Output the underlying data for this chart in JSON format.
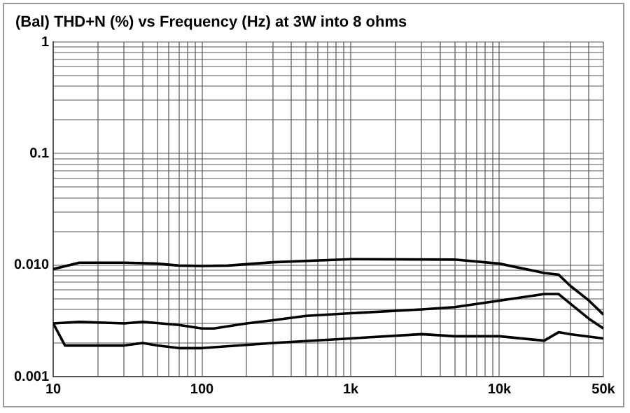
{
  "chart_data": {
    "type": "line",
    "title": "(Bal)  THD+N (%) vs Frequency (Hz) at 3W into 8 ohms",
    "log": "xy",
    "grid": true,
    "marker": "none",
    "line_style": "solid",
    "legend": false,
    "xlim": [
      10,
      50000
    ],
    "ylim": [
      0.001,
      1
    ],
    "xticks": [
      10,
      {
        "value": 20,
        "label": null
      },
      {
        "value": 30,
        "label": null
      },
      {
        "value": 40,
        "label": null
      },
      {
        "value": 50,
        "label": null
      },
      {
        "value": 60,
        "label": null
      },
      {
        "value": 70,
        "label": null
      },
      {
        "value": 80,
        "label": null
      },
      {
        "value": 90,
        "label": null
      },
      100,
      {
        "value": 200,
        "label": null
      },
      {
        "value": 300,
        "label": null
      },
      {
        "value": 400,
        "label": null
      },
      {
        "value": 500,
        "label": null
      },
      {
        "value": 600,
        "label": null
      },
      {
        "value": 700,
        "label": null
      },
      {
        "value": 800,
        "label": null
      },
      {
        "value": 900,
        "label": null
      },
      {
        "value": 1000,
        "label": "1k"
      },
      {
        "value": 2000,
        "label": null
      },
      {
        "value": 3000,
        "label": null
      },
      {
        "value": 4000,
        "label": null
      },
      {
        "value": 5000,
        "label": null
      },
      {
        "value": 6000,
        "label": null
      },
      {
        "value": 7000,
        "label": null
      },
      {
        "value": 8000,
        "label": null
      },
      {
        "value": 9000,
        "label": null
      },
      {
        "value": 10000,
        "label": "10k"
      },
      {
        "value": 20000,
        "label": null
      },
      {
        "value": 30000,
        "label": null
      },
      {
        "value": 40000,
        "label": null
      },
      {
        "value": 50000,
        "label": "50k"
      }
    ],
    "yticks": [
      {
        "value": 0.001,
        "label": "0.001"
      },
      {
        "value": 0.002,
        "label": null
      },
      {
        "value": 0.003,
        "label": null
      },
      {
        "value": 0.004,
        "label": null
      },
      {
        "value": 0.005,
        "label": null
      },
      {
        "value": 0.006,
        "label": null
      },
      {
        "value": 0.007,
        "label": null
      },
      {
        "value": 0.008,
        "label": null
      },
      {
        "value": 0.009,
        "label": null
      },
      {
        "value": 0.01,
        "label": "0.010"
      },
      {
        "value": 0.02,
        "label": null
      },
      {
        "value": 0.03,
        "label": null
      },
      {
        "value": 0.04,
        "label": null
      },
      {
        "value": 0.05,
        "label": null
      },
      {
        "value": 0.06,
        "label": null
      },
      {
        "value": 0.07,
        "label": null
      },
      {
        "value": 0.08,
        "label": null
      },
      {
        "value": 0.09,
        "label": null
      },
      {
        "value": 0.1,
        "label": "0.1"
      },
      {
        "value": 0.2,
        "label": null
      },
      {
        "value": 0.3,
        "label": null
      },
      {
        "value": 0.4,
        "label": null
      },
      {
        "value": 0.5,
        "label": null
      },
      {
        "value": 0.6,
        "label": null
      },
      {
        "value": 0.7,
        "label": null
      },
      {
        "value": 0.8,
        "label": null
      },
      {
        "value": 0.9,
        "label": null
      },
      {
        "value": 1,
        "label": "1"
      }
    ],
    "series": [
      {
        "color": "#000000",
        "x": [
          10,
          15,
          30,
          50,
          70,
          100,
          150,
          300,
          1000,
          5000,
          10000,
          20000,
          25000,
          30000,
          40000,
          50000
        ],
        "values": [
          0.0092,
          0.0105,
          0.0105,
          0.0103,
          0.0099,
          0.0098,
          0.0099,
          0.0106,
          0.0113,
          0.0112,
          0.0103,
          0.0085,
          0.0082,
          0.0065,
          0.0048,
          0.0036
        ]
      },
      {
        "color": "#000000",
        "x": [
          10,
          15,
          30,
          40,
          70,
          100,
          120,
          200,
          300,
          500,
          1000,
          3000,
          5000,
          10000,
          20000,
          25000,
          30000,
          40000,
          50000
        ],
        "values": [
          0.003,
          0.0031,
          0.003,
          0.0031,
          0.0029,
          0.0027,
          0.0027,
          0.003,
          0.0032,
          0.0035,
          0.0037,
          0.004,
          0.0042,
          0.0048,
          0.0055,
          0.0055,
          0.0045,
          0.0033,
          0.0027
        ]
      },
      {
        "color": "#000000",
        "x": [
          10,
          12,
          30,
          40,
          50,
          70,
          100,
          300,
          1000,
          3000,
          5000,
          10000,
          20000,
          25000,
          30000,
          50000
        ],
        "values": [
          0.003,
          0.0019,
          0.0019,
          0.002,
          0.0019,
          0.0018,
          0.0018,
          0.002,
          0.0022,
          0.0024,
          0.0023,
          0.0023,
          0.0021,
          0.0025,
          0.0024,
          0.0022
        ]
      }
    ]
  }
}
